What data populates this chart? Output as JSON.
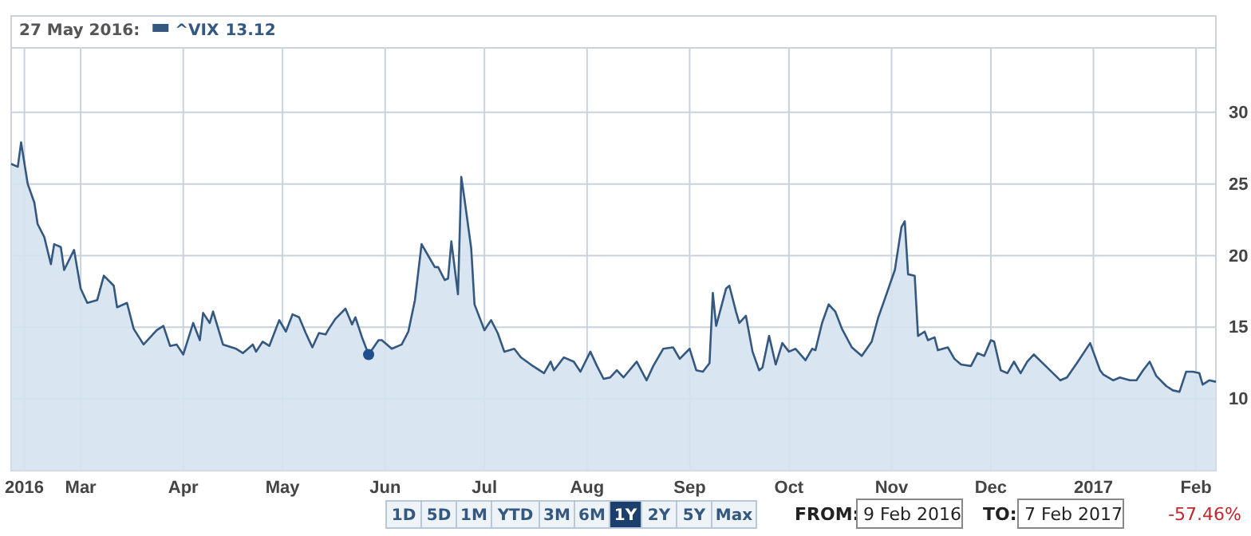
{
  "chart_data": {
    "type": "area",
    "legend_title": "27 May 2016:",
    "legend": "top left",
    "grid": true,
    "xlim": [
      "2016-02-09",
      "2017-02-07"
    ],
    "xticks": [
      {
        "value": "2016-02-13",
        "label": "2016"
      },
      {
        "value": "2016-03-01",
        "label": "Mar"
      },
      {
        "value": "2016-04-01",
        "label": "Apr"
      },
      {
        "value": "2016-05-01",
        "label": "May"
      },
      {
        "value": "2016-06-01",
        "label": "Jun"
      },
      {
        "value": "2016-07-01",
        "label": "Jul"
      },
      {
        "value": "2016-08-01",
        "label": "Aug"
      },
      {
        "value": "2016-09-01",
        "label": "Sep"
      },
      {
        "value": "2016-10-01",
        "label": "Oct"
      },
      {
        "value": "2016-11-01",
        "label": "Nov"
      },
      {
        "value": "2016-12-01",
        "label": "Dec"
      },
      {
        "value": "2017-01-01",
        "label": "2017"
      },
      {
        "value": "2017-02-01",
        "label": "Feb"
      }
    ],
    "ylim": [
      5,
      34.5
    ],
    "yticks": [
      10,
      15,
      20,
      25,
      30
    ],
    "x": [
      "2016-02-09",
      "2016-02-11",
      "2016-02-12",
      "2016-02-14",
      "2016-02-16",
      "2016-02-17",
      "2016-02-19",
      "2016-02-21",
      "2016-02-22",
      "2016-02-24",
      "2016-02-25",
      "2016-02-28",
      "2016-03-01",
      "2016-03-03",
      "2016-03-06",
      "2016-03-08",
      "2016-03-11",
      "2016-03-12",
      "2016-03-15",
      "2016-03-17",
      "2016-03-20",
      "2016-03-24",
      "2016-03-26",
      "2016-03-28",
      "2016-03-30",
      "2016-04-01",
      "2016-04-04",
      "2016-04-06",
      "2016-04-07",
      "2016-04-09",
      "2016-04-10",
      "2016-04-13",
      "2016-04-17",
      "2016-04-19",
      "2016-04-22",
      "2016-04-23",
      "2016-04-25",
      "2016-04-27",
      "2016-04-30",
      "2016-05-02",
      "2016-05-04",
      "2016-05-06",
      "2016-05-08",
      "2016-05-10",
      "2016-05-12",
      "2016-05-14",
      "2016-05-15",
      "2016-05-17",
      "2016-05-20",
      "2016-05-22",
      "2016-05-23",
      "2016-05-25",
      "2016-05-27",
      "2016-05-30",
      "2016-05-31",
      "2016-06-03",
      "2016-06-06",
      "2016-06-08",
      "2016-06-10",
      "2016-06-12",
      "2016-06-14",
      "2016-06-16",
      "2016-06-17",
      "2016-06-19",
      "2016-06-20",
      "2016-06-21",
      "2016-06-23",
      "2016-06-24",
      "2016-06-25",
      "2016-06-27",
      "2016-06-28",
      "2016-07-01",
      "2016-07-03",
      "2016-07-05",
      "2016-07-07",
      "2016-07-10",
      "2016-07-12",
      "2016-07-15",
      "2016-07-19",
      "2016-07-21",
      "2016-07-22",
      "2016-07-25",
      "2016-07-28",
      "2016-07-30",
      "2016-08-02",
      "2016-08-04",
      "2016-08-06",
      "2016-08-08",
      "2016-08-10",
      "2016-08-12",
      "2016-08-16",
      "2016-08-19",
      "2016-08-21",
      "2016-08-24",
      "2016-08-27",
      "2016-08-29",
      "2016-09-01",
      "2016-09-03",
      "2016-09-05",
      "2016-09-07",
      "2016-09-08",
      "2016-09-09",
      "2016-09-12",
      "2016-09-13",
      "2016-09-15",
      "2016-09-16",
      "2016-09-18",
      "2016-09-20",
      "2016-09-22",
      "2016-09-23",
      "2016-09-25",
      "2016-09-27",
      "2016-09-29",
      "2016-10-01",
      "2016-10-03",
      "2016-10-06",
      "2016-10-08",
      "2016-10-09",
      "2016-10-11",
      "2016-10-13",
      "2016-10-15",
      "2016-10-17",
      "2016-10-20",
      "2016-10-23",
      "2016-10-26",
      "2016-10-28",
      "2016-10-30",
      "2016-11-02",
      "2016-11-04",
      "2016-11-05",
      "2016-11-06",
      "2016-11-08",
      "2016-11-09",
      "2016-11-11",
      "2016-11-12",
      "2016-11-14",
      "2016-11-15",
      "2016-11-18",
      "2016-11-20",
      "2016-11-22",
      "2016-11-25",
      "2016-11-27",
      "2016-11-29",
      "2016-12-01",
      "2016-12-02",
      "2016-12-04",
      "2016-12-06",
      "2016-12-08",
      "2016-12-10",
      "2016-12-12",
      "2016-12-14",
      "2016-12-18",
      "2016-12-22",
      "2016-12-24",
      "2016-12-27",
      "2016-12-31",
      "2017-01-03",
      "2017-01-04",
      "2017-01-07",
      "2017-01-09",
      "2017-01-12",
      "2017-01-14",
      "2017-01-16",
      "2017-01-18",
      "2017-01-20",
      "2017-01-23",
      "2017-01-25",
      "2017-01-27",
      "2017-01-29",
      "2017-01-31",
      "2017-02-02",
      "2017-02-03",
      "2017-02-05",
      "2017-02-07"
    ],
    "series": [
      {
        "name": "^VIX",
        "color": "#34587f",
        "values": [
          26.4,
          26.2,
          27.9,
          25,
          23.7,
          22.2,
          21.3,
          19.4,
          20.8,
          20.6,
          19,
          20.4,
          17.7,
          16.7,
          16.9,
          18.6,
          17.9,
          16.4,
          16.7,
          14.9,
          13.8,
          14.8,
          15.1,
          13.7,
          13.8,
          13.1,
          15.3,
          14.1,
          16,
          15.3,
          16.1,
          13.8,
          13.5,
          13.2,
          13.8,
          13.3,
          14,
          13.7,
          15.5,
          14.7,
          15.9,
          15.7,
          14.6,
          13.6,
          14.6,
          14.5,
          14.9,
          15.6,
          16.3,
          15.2,
          15.7,
          14.3,
          13.1,
          14.1,
          14.1,
          13.5,
          13.8,
          14.7,
          16.9,
          20.8,
          20,
          19.2,
          19.2,
          18.3,
          18.4,
          21,
          17.3,
          25.5,
          23.9,
          20.5,
          16.6,
          14.8,
          15.5,
          14.6,
          13.3,
          13.5,
          12.9,
          12.4,
          11.8,
          12.6,
          12,
          12.9,
          12.6,
          11.9,
          13.3,
          12.3,
          11.4,
          11.5,
          12,
          11.5,
          12.6,
          11.3,
          12.3,
          13.5,
          13.6,
          12.8,
          13.5,
          12,
          11.9,
          12.5,
          17.4,
          15.1,
          17.7,
          17.9,
          16.1,
          15.3,
          15.8,
          13.3,
          12,
          12.2,
          14.4,
          12.4,
          13.9,
          13.3,
          13.5,
          12.7,
          13.5,
          13.4,
          15.3,
          16.6,
          16.1,
          14.9,
          13.6,
          13,
          14,
          15.7,
          17,
          19,
          22,
          22.4,
          18.7,
          18.6,
          14.4,
          14.7,
          14.1,
          14.3,
          13.4,
          13.6,
          12.8,
          12.4,
          12.3,
          13.2,
          13,
          14.1,
          14,
          12,
          11.8,
          12.6,
          11.8,
          12.6,
          13.1,
          12.2,
          11.3,
          11.5,
          12.5,
          13.9,
          12,
          11.7,
          11.3,
          11.5,
          11.3,
          11.3,
          12,
          12.6,
          11.6,
          10.9,
          10.6,
          10.5,
          11.9,
          11.9,
          11.8,
          11,
          11.3,
          11.2
        ]
      },
      {
        "type": "scatter",
        "color": "#1f4e8c",
        "x": [
          "2016-05-27"
        ],
        "values": [
          13.1
        ]
      }
    ],
    "annotations": [
      "13.12",
      "1D",
      "5D",
      "1M",
      "YTD",
      "3M",
      "6M",
      "1Y",
      "2Y",
      "5Y",
      "Max",
      "FROM:",
      "9 Feb 2016",
      "TO:",
      "7 Feb 2017",
      "-57.46%"
    ]
  }
}
